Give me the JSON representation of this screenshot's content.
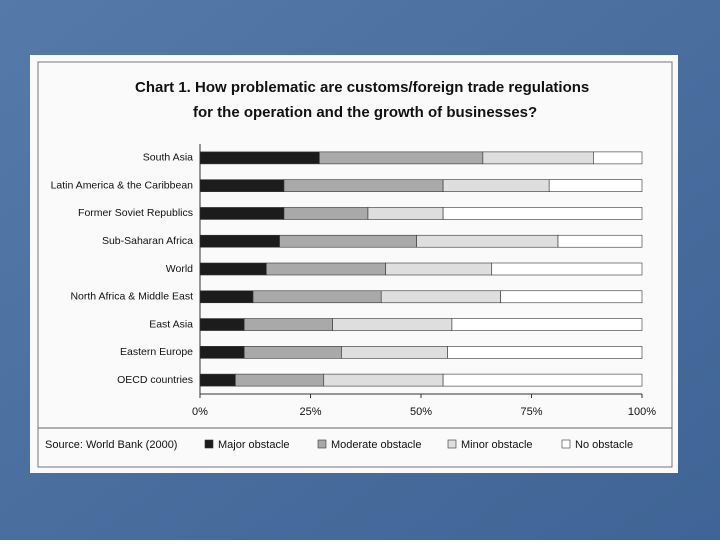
{
  "chart_data": {
    "type": "stacked-bar-horizontal",
    "title": [
      "Chart 1.  How problematic are customs/foreign trade regulations",
      "for the operation and the growth of businesses?"
    ],
    "source": "Source: World Bank (2000)",
    "categories": [
      "South Asia",
      "Latin America & the Caribbean",
      "Former Soviet Republics",
      "Sub-Saharan Africa",
      "World",
      "North Africa & Middle East",
      "East Asia",
      "Eastern Europe",
      "OECD countries"
    ],
    "series": [
      {
        "name": "Major obstacle",
        "color": "#1c1c1c",
        "values": [
          27,
          19,
          19,
          18,
          15,
          12,
          10,
          10,
          8
        ]
      },
      {
        "name": "Moderate obstacle",
        "color": "#a9a9a9",
        "values": [
          37,
          36,
          19,
          31,
          27,
          29,
          20,
          22,
          20
        ]
      },
      {
        "name": "Minor obstacle",
        "color": "#dedede",
        "values": [
          25,
          24,
          17,
          32,
          24,
          27,
          27,
          24,
          27
        ]
      },
      {
        "name": "No obstacle",
        "color": "#ffffff",
        "values": [
          11,
          21,
          45,
          19,
          34,
          32,
          43,
          44,
          45
        ]
      }
    ],
    "xlim": [
      0,
      100
    ],
    "xticks": [
      {
        "value": 0,
        "label": "0%"
      },
      {
        "value": 25,
        "label": "25%"
      },
      {
        "value": 50,
        "label": "50%"
      },
      {
        "value": 75,
        "label": "75%"
      },
      {
        "value": 100,
        "label": "100%"
      }
    ],
    "legend": "bottom"
  }
}
